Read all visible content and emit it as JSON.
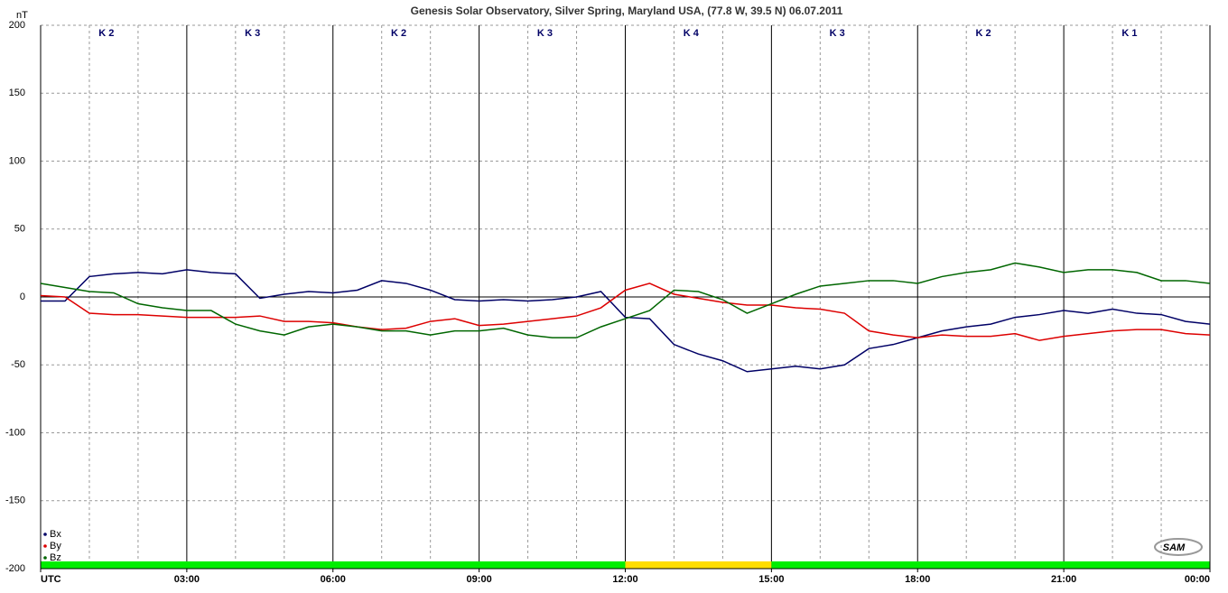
{
  "chart_data": {
    "type": "line",
    "title": "Genesis Solar Observatory, Silver Spring, Maryland USA, (77.8 W, 39.5 N)  06.07.2011",
    "y_label": "nT",
    "x": [
      0,
      0.5,
      1,
      1.5,
      2,
      2.5,
      3,
      3.5,
      4,
      4.5,
      5,
      5.5,
      6,
      6.5,
      7,
      7.5,
      8,
      8.5,
      9,
      9.5,
      10,
      10.5,
      11,
      11.5,
      12,
      12.5,
      13,
      13.5,
      14,
      14.5,
      15,
      15.5,
      16,
      16.5,
      17,
      17.5,
      18,
      18.5,
      19,
      19.5,
      20,
      20.5,
      21,
      21.5,
      22,
      22.5,
      23,
      23.5,
      24
    ],
    "series": [
      {
        "name": "Bx",
        "color": "#000066",
        "values": [
          -3,
          -3,
          15,
          17,
          18,
          17,
          20,
          18,
          17,
          -1,
          2,
          4,
          3,
          5,
          12,
          10,
          5,
          -2,
          -3,
          -2,
          -3,
          -2,
          0,
          4,
          -15,
          -16,
          -35,
          -42,
          -47,
          -55,
          -53,
          -51,
          -53,
          -50,
          -38,
          -35,
          -30,
          -25,
          -22,
          -20,
          -15,
          -13,
          -10,
          -12,
          -9,
          -12,
          -13,
          -18,
          -20
        ]
      },
      {
        "name": "By",
        "color": "#dd0000",
        "values": [
          1,
          0,
          -12,
          -13,
          -13,
          -14,
          -15,
          -15,
          -15,
          -14,
          -18,
          -18,
          -19,
          -22,
          -24,
          -23,
          -18,
          -16,
          -21,
          -20,
          -18,
          -16,
          -14,
          -8,
          5,
          10,
          2,
          -1,
          -4,
          -6,
          -6,
          -8,
          -9,
          -12,
          -25,
          -28,
          -30,
          -28,
          -29,
          -29,
          -27,
          -32,
          -29,
          -27,
          -25,
          -24,
          -24,
          -27,
          -28
        ]
      },
      {
        "name": "Bz",
        "color": "#006600",
        "values": [
          10,
          7,
          4,
          3,
          -5,
          -8,
          -10,
          -10,
          -20,
          -25,
          -28,
          -22,
          -20,
          -22,
          -25,
          -25,
          -28,
          -25,
          -25,
          -23,
          -28,
          -30,
          -30,
          -22,
          -16,
          -10,
          5,
          4,
          -2,
          -12,
          -5,
          2,
          8,
          10,
          12,
          12,
          10,
          15,
          18,
          20,
          25,
          22,
          18,
          20,
          20,
          18,
          12,
          12,
          10
        ]
      }
    ],
    "xlim": [
      0,
      24
    ],
    "xticks": [
      {
        "value": 0,
        "label": "UTC"
      },
      {
        "value": 3,
        "label": "03:00"
      },
      {
        "value": 6,
        "label": "06:00"
      },
      {
        "value": 9,
        "label": "09:00"
      },
      {
        "value": 12,
        "label": "12:00"
      },
      {
        "value": 15,
        "label": "15:00"
      },
      {
        "value": 18,
        "label": "18:00"
      },
      {
        "value": 21,
        "label": "21:00"
      },
      {
        "value": 24,
        "label": "00:00"
      }
    ],
    "xminor": [
      1,
      2,
      4,
      5,
      7,
      8,
      10,
      11,
      13,
      14,
      16,
      17,
      19,
      20,
      22,
      23
    ],
    "ylim": [
      -200,
      200
    ],
    "yticks": [
      -200,
      -150,
      -100,
      -50,
      0,
      50,
      100,
      150,
      200
    ],
    "k_labels": [
      "K 2",
      "K 3",
      "K 2",
      "K 3",
      "K 4",
      "K 3",
      "K 2",
      "K 1"
    ],
    "status_bar": [
      {
        "from": 0,
        "to": 12,
        "color": "#00ee00"
      },
      {
        "from": 12,
        "to": 15,
        "color": "#ffdd00"
      },
      {
        "from": 15,
        "to": 24,
        "color": "#00ee00"
      }
    ],
    "logo": "SAM"
  }
}
